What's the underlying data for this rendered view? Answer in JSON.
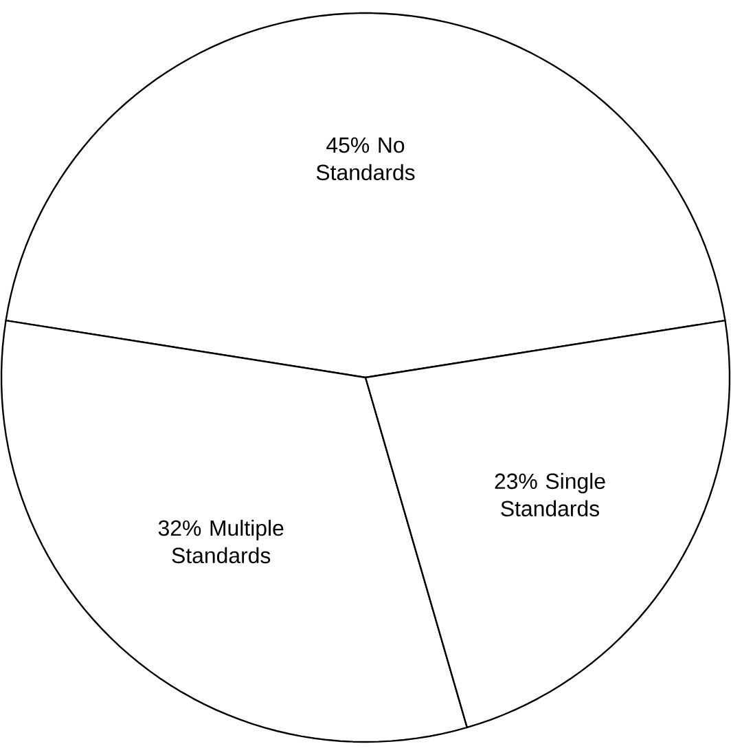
{
  "chart_data": {
    "type": "pie",
    "categories": [
      "No Standards",
      "Multiple Standards",
      "Single Standards"
    ],
    "values": [
      45,
      32,
      23
    ],
    "value_labels": [
      "45%",
      "32%",
      "23%"
    ],
    "colors": [
      "#ffffff",
      "#ffffff",
      "#ffffff"
    ]
  }
}
